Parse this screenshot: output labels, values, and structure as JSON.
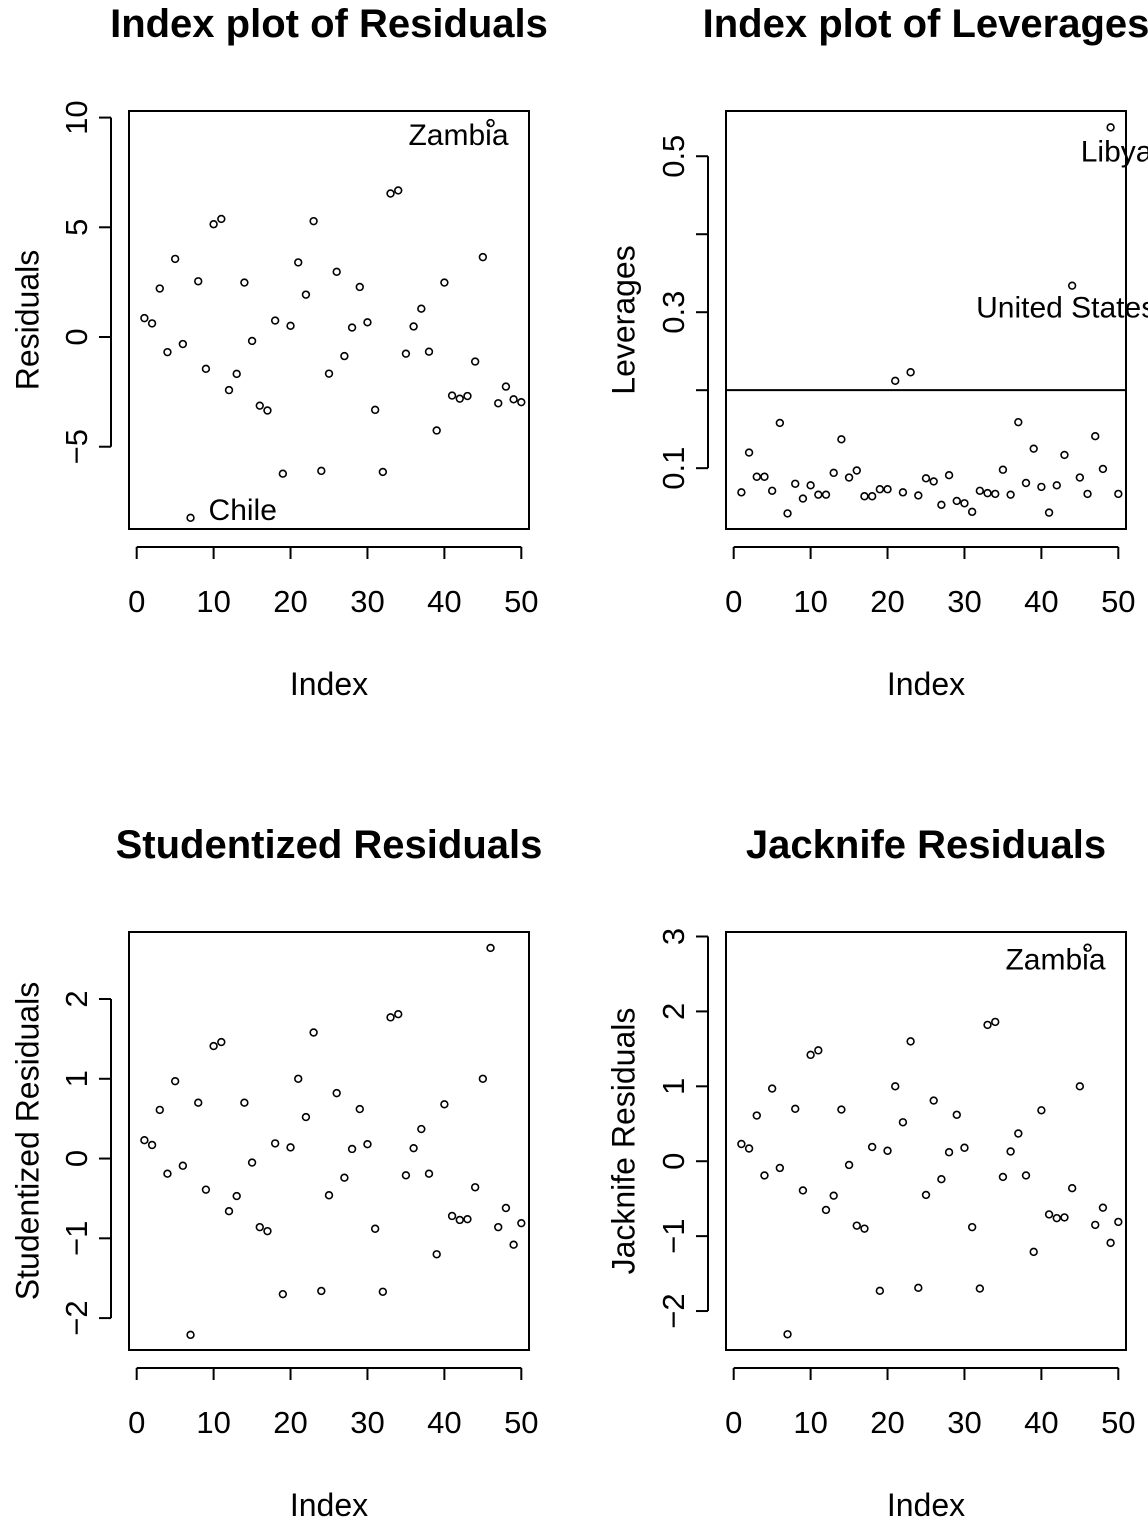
{
  "chart_data": [
    {
      "type": "scatter",
      "title": "Index plot of Residuals",
      "xlabel": "Index",
      "ylabel": "Residuals",
      "xlim": [
        -1,
        51
      ],
      "ylim": [
        -8.75,
        10.3
      ],
      "xticks": [
        0,
        10,
        20,
        30,
        40,
        50
      ],
      "yticks": [
        -5,
        0,
        5,
        10
      ],
      "ytick_labels": [
        "−5",
        "0",
        "5",
        "10"
      ],
      "grid": false,
      "series": [
        {
          "x": [
            1,
            2,
            3,
            4,
            5,
            6,
            7,
            8,
            9,
            10,
            11,
            12,
            13,
            14,
            15,
            16,
            17,
            18,
            19,
            20,
            21,
            22,
            23,
            24,
            25,
            26,
            27,
            28,
            29,
            30,
            31,
            32,
            33,
            34,
            35,
            36,
            37,
            38,
            39,
            40,
            41,
            42,
            43,
            44,
            45,
            46,
            47,
            48,
            49,
            50
          ],
          "y": [
            0.86,
            0.62,
            2.21,
            -0.69,
            3.56,
            -0.32,
            -8.24,
            2.54,
            -1.45,
            5.14,
            5.38,
            -2.42,
            -1.68,
            2.48,
            -0.18,
            -3.13,
            -3.35,
            0.75,
            -6.23,
            0.51,
            3.4,
            1.93,
            5.28,
            -6.1,
            -1.67,
            2.97,
            -0.87,
            0.43,
            2.28,
            0.67,
            -3.32,
            -6.15,
            6.54,
            6.68,
            -0.76,
            0.48,
            1.29,
            -0.67,
            -4.26,
            2.48,
            -2.67,
            -2.81,
            -2.69,
            -1.12,
            3.64,
            9.75,
            -3.02,
            -2.26,
            -2.84,
            -2.97
          ]
        }
      ],
      "annotations": [
        {
          "text": "Zambia",
          "x": 46,
          "y": 9.75
        },
        {
          "text": "Chile",
          "x": 7,
          "y": -8.24
        }
      ]
    },
    {
      "type": "scatter",
      "title": "Index plot of Leverages",
      "xlabel": "Index",
      "ylabel": "Leverages",
      "xlim": [
        -1,
        51
      ],
      "ylim": [
        0.022,
        0.558
      ],
      "xticks": [
        0,
        10,
        20,
        30,
        40,
        50
      ],
      "yticks": [
        0.1,
        0.3,
        0.5
      ],
      "ytick_labels": [
        "0.1",
        "0.3",
        "0.5"
      ],
      "yminor_ticks": [
        0.2,
        0.4
      ],
      "hline": 0.2,
      "grid": false,
      "series": [
        {
          "x": [
            1,
            2,
            3,
            4,
            5,
            6,
            7,
            8,
            9,
            10,
            11,
            12,
            13,
            14,
            15,
            16,
            17,
            18,
            19,
            20,
            21,
            22,
            23,
            24,
            25,
            26,
            27,
            28,
            29,
            30,
            31,
            32,
            33,
            34,
            35,
            36,
            37,
            38,
            39,
            40,
            41,
            42,
            43,
            44,
            45,
            46,
            47,
            48,
            49,
            50
          ],
          "y": [
            0.069,
            0.12,
            0.089,
            0.089,
            0.071,
            0.158,
            0.042,
            0.08,
            0.061,
            0.078,
            0.066,
            0.066,
            0.094,
            0.137,
            0.088,
            0.097,
            0.064,
            0.064,
            0.073,
            0.073,
            0.212,
            0.069,
            0.223,
            0.065,
            0.087,
            0.083,
            0.053,
            0.091,
            0.058,
            0.055,
            0.044,
            0.071,
            0.068,
            0.067,
            0.098,
            0.066,
            0.159,
            0.081,
            0.125,
            0.076,
            0.043,
            0.078,
            0.117,
            0.334,
            0.088,
            0.067,
            0.141,
            0.099,
            0.537,
            0.067
          ]
        }
      ],
      "annotations": [
        {
          "text": "Libya",
          "x": 49,
          "y": 0.537
        },
        {
          "text": "United States",
          "x": 44,
          "y": 0.334
        }
      ]
    },
    {
      "type": "scatter",
      "title": "Studentized Residuals",
      "xlabel": "Index",
      "ylabel": "Studentized Residuals",
      "xlim": [
        -1,
        51
      ],
      "ylim": [
        -2.4,
        2.84
      ],
      "xticks": [
        0,
        10,
        20,
        30,
        40,
        50
      ],
      "yticks": [
        -2,
        -1,
        0,
        1,
        2
      ],
      "ytick_labels": [
        "−2",
        "−1",
        "0",
        "1",
        "2"
      ],
      "grid": false,
      "series": [
        {
          "x": [
            1,
            2,
            3,
            4,
            5,
            6,
            7,
            8,
            9,
            10,
            11,
            12,
            13,
            14,
            15,
            16,
            17,
            18,
            19,
            20,
            21,
            22,
            23,
            24,
            25,
            26,
            27,
            28,
            29,
            30,
            31,
            32,
            33,
            34,
            35,
            36,
            37,
            38,
            39,
            40,
            41,
            42,
            43,
            44,
            45,
            46,
            47,
            48,
            49,
            50
          ],
          "y": [
            0.23,
            0.17,
            0.61,
            -0.19,
            0.97,
            -0.09,
            -2.21,
            0.7,
            -0.39,
            1.41,
            1.46,
            -0.66,
            -0.47,
            0.7,
            -0.05,
            -0.86,
            -0.91,
            0.19,
            -1.7,
            0.14,
            1.0,
            0.52,
            1.58,
            -1.66,
            -0.46,
            0.82,
            -0.24,
            0.12,
            0.62,
            0.18,
            -0.88,
            -1.67,
            1.77,
            1.81,
            -0.21,
            0.13,
            0.37,
            -0.19,
            -1.2,
            0.68,
            -0.72,
            -0.77,
            -0.76,
            -0.36,
            1.0,
            2.64,
            -0.86,
            -0.62,
            -1.08,
            -0.81
          ]
        }
      ]
    },
    {
      "type": "scatter",
      "title": "Jacknife Residuals",
      "xlabel": "Index",
      "ylabel": "Jacknife Residuals",
      "xlim": [
        -1,
        51
      ],
      "ylim": [
        -2.52,
        3.06
      ],
      "xticks": [
        0,
        10,
        20,
        30,
        40,
        50
      ],
      "yticks": [
        -2,
        -1,
        0,
        1,
        2,
        3
      ],
      "ytick_labels": [
        "−2",
        "−1",
        "0",
        "1",
        "2",
        "3"
      ],
      "grid": false,
      "series": [
        {
          "x": [
            1,
            2,
            3,
            4,
            5,
            6,
            7,
            8,
            9,
            10,
            11,
            12,
            13,
            14,
            15,
            16,
            17,
            18,
            19,
            20,
            21,
            22,
            23,
            24,
            25,
            26,
            27,
            28,
            29,
            30,
            31,
            32,
            33,
            34,
            35,
            36,
            37,
            38,
            39,
            40,
            41,
            42,
            43,
            44,
            45,
            46,
            47,
            48,
            49,
            50
          ],
          "y": [
            0.23,
            0.17,
            0.61,
            -0.19,
            0.97,
            -0.09,
            -2.31,
            0.7,
            -0.39,
            1.42,
            1.48,
            -0.65,
            -0.46,
            0.69,
            -0.05,
            -0.86,
            -0.9,
            0.19,
            -1.73,
            0.14,
            1.0,
            0.52,
            1.6,
            -1.69,
            -0.45,
            0.81,
            -0.24,
            0.12,
            0.62,
            0.18,
            -0.88,
            -1.7,
            1.82,
            1.86,
            -0.21,
            0.13,
            0.37,
            -0.19,
            -1.21,
            0.68,
            -0.71,
            -0.76,
            -0.75,
            -0.36,
            1.0,
            2.85,
            -0.85,
            -0.62,
            -1.09,
            -0.81
          ]
        }
      ],
      "annotations": [
        {
          "text": "Zambia",
          "x": 46,
          "y": 2.85
        }
      ]
    }
  ]
}
